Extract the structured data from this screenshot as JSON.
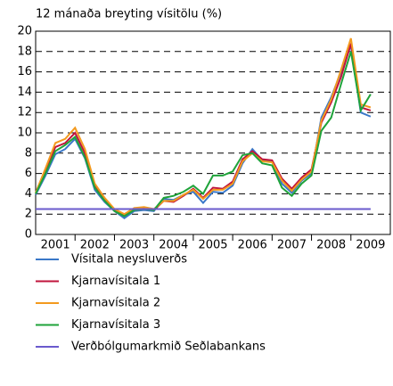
{
  "chart_data": {
    "type": "line",
    "title": "12 mánaða breyting vísitölu (%)",
    "x": [
      2001.0,
      2001.25,
      2001.5,
      2001.75,
      2002.0,
      2002.25,
      2002.5,
      2002.75,
      2003.0,
      2003.25,
      2003.5,
      2003.75,
      2004.0,
      2004.25,
      2004.5,
      2004.75,
      2005.0,
      2005.25,
      2005.5,
      2005.75,
      2006.0,
      2006.25,
      2006.5,
      2006.75,
      2007.0,
      2007.25,
      2007.5,
      2007.75,
      2008.0,
      2008.25,
      2008.5,
      2008.75,
      2009.0,
      2009.25,
      2009.5
    ],
    "xlim": [
      2001,
      2010
    ],
    "xticks": [
      {
        "value": 2001.5,
        "label": "2001"
      },
      {
        "value": 2002.5,
        "label": "2002"
      },
      {
        "value": 2003.5,
        "label": "2003"
      },
      {
        "value": 2004.5,
        "label": "2004"
      },
      {
        "value": 2005.5,
        "label": "2005"
      },
      {
        "value": 2006.5,
        "label": "2006"
      },
      {
        "value": 2007.5,
        "label": "2007"
      },
      {
        "value": 2008.5,
        "label": "2008"
      },
      {
        "value": 2009.5,
        "label": "2009"
      }
    ],
    "ylim": [
      0,
      20
    ],
    "yticks": [
      0,
      2,
      4,
      6,
      8,
      10,
      12,
      14,
      16,
      18,
      20
    ],
    "grid": true,
    "series": [
      {
        "name": "Vísitala neysluverðs",
        "color": "#3a78c8",
        "values": [
          3.9,
          5.8,
          7.9,
          8.4,
          9.4,
          7.5,
          4.4,
          3.2,
          2.3,
          1.6,
          2.3,
          2.4,
          2.3,
          3.5,
          3.4,
          3.9,
          4.2,
          3.1,
          4.2,
          4.1,
          4.8,
          7.0,
          8.4,
          7.3,
          7.2,
          5.0,
          4.1,
          5.3,
          6.0,
          11.5,
          13.5,
          16.0,
          18.6,
          12.0,
          11.6
        ]
      },
      {
        "name": "Kjarnavísitala 1",
        "color": "#c0143c",
        "values": [
          4.0,
          6.2,
          8.6,
          9.0,
          10.0,
          8.0,
          4.8,
          3.4,
          2.4,
          1.9,
          2.5,
          2.6,
          2.4,
          3.3,
          3.2,
          3.8,
          4.5,
          3.6,
          4.6,
          4.5,
          5.2,
          7.4,
          8.2,
          7.4,
          7.3,
          5.5,
          4.5,
          5.6,
          6.4,
          11.0,
          13.0,
          15.5,
          18.8,
          12.5,
          12.2
        ]
      },
      {
        "name": "Kjarnavísitala 2",
        "color": "#f39a1e",
        "values": [
          4.1,
          6.5,
          9.0,
          9.4,
          10.5,
          8.4,
          5.0,
          3.6,
          2.5,
          2.0,
          2.6,
          2.7,
          2.5,
          3.3,
          3.3,
          3.9,
          4.4,
          3.5,
          4.4,
          4.4,
          5.0,
          7.2,
          8.0,
          7.2,
          7.1,
          5.3,
          4.3,
          5.4,
          6.2,
          11.2,
          13.3,
          16.2,
          19.3,
          12.8,
          12.5
        ]
      },
      {
        "name": "Kjarnavísitala 3",
        "color": "#1fa33a",
        "values": [
          4.0,
          6.0,
          8.2,
          8.8,
          9.6,
          7.6,
          4.6,
          3.3,
          2.3,
          1.8,
          2.4,
          2.5,
          2.4,
          3.6,
          3.8,
          4.2,
          4.8,
          4.0,
          5.8,
          5.8,
          6.2,
          7.8,
          8.0,
          7.0,
          6.8,
          4.6,
          3.8,
          5.0,
          5.8,
          10.2,
          11.5,
          14.8,
          18.0,
          12.2,
          13.8
        ]
      },
      {
        "name": "Verðbólgumarkmið Seðlabankans",
        "color": "#6a5acd",
        "values": [
          2.5,
          2.5,
          2.5,
          2.5,
          2.5,
          2.5,
          2.5,
          2.5,
          2.5,
          2.5,
          2.5,
          2.5,
          2.5,
          2.5,
          2.5,
          2.5,
          2.5,
          2.5,
          2.5,
          2.5,
          2.5,
          2.5,
          2.5,
          2.5,
          2.5,
          2.5,
          2.5,
          2.5,
          2.5,
          2.5,
          2.5,
          2.5,
          2.5,
          2.5,
          2.5
        ]
      }
    ]
  }
}
